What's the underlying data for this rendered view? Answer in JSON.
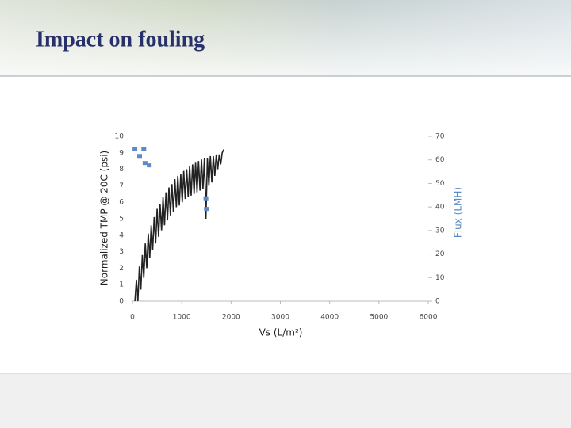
{
  "slide_title": "Impact on fouling",
  "chart_data": {
    "type": "line-scatter",
    "xlabel": "Vs (L/m²)",
    "ylabel": "Normalized TMP @ 20C (psi)",
    "y2label": "Flux (LMH)",
    "xlim": [
      0,
      6000
    ],
    "xticks": [
      0,
      1000,
      2000,
      3000,
      4000,
      5000,
      6000
    ],
    "ylim": [
      0,
      10
    ],
    "yticks": [
      0,
      1,
      2,
      3,
      4,
      5,
      6,
      7,
      8,
      9,
      10
    ],
    "y2lim": [
      0,
      70
    ],
    "y2ticks": [
      0,
      10,
      20,
      30,
      40,
      50,
      60,
      70
    ],
    "grid": false,
    "series": [
      {
        "name": "Normalized TMP",
        "color": "#222222",
        "kind": "line",
        "x": [
          50,
          80,
          110,
          140,
          170,
          200,
          230,
          260,
          290,
          320,
          350,
          380,
          410,
          440,
          470,
          500,
          530,
          560,
          590,
          620,
          650,
          680,
          710,
          740,
          770,
          800,
          830,
          860,
          890,
          920,
          950,
          980,
          1010,
          1040,
          1070,
          1100,
          1130,
          1160,
          1190,
          1220,
          1250,
          1280,
          1310,
          1340,
          1370,
          1400,
          1430,
          1460,
          1490,
          1520,
          1550,
          1580,
          1610,
          1640,
          1670,
          1700,
          1730,
          1760,
          1790,
          1820,
          1850
        ],
        "values": [
          0,
          1.3,
          0,
          2.1,
          0.7,
          2.8,
          1.4,
          3.5,
          2.0,
          4.1,
          2.6,
          4.6,
          3.1,
          5.1,
          3.5,
          5.6,
          3.9,
          5.9,
          4.3,
          6.3,
          4.6,
          6.6,
          4.9,
          6.9,
          5.2,
          7.1,
          5.4,
          7.4,
          5.7,
          7.6,
          5.8,
          7.7,
          6.0,
          7.9,
          6.2,
          8.0,
          6.3,
          8.2,
          6.4,
          8.3,
          6.5,
          8.4,
          6.6,
          8.5,
          6.7,
          8.6,
          6.8,
          8.7,
          5.0,
          8.7,
          7.0,
          8.8,
          7.2,
          8.8,
          7.6,
          8.9,
          8.0,
          8.9,
          8.3,
          9.0,
          9.2
        ]
      },
      {
        "name": "Flux",
        "color": "#5b8ac6",
        "kind": "scatter",
        "axis": "y2",
        "x": [
          50,
          230,
          145,
          255,
          340,
          1490,
          1500
        ],
        "values": [
          64.5,
          64.5,
          61.5,
          58.5,
          57.5,
          43.5,
          39
        ]
      }
    ]
  }
}
